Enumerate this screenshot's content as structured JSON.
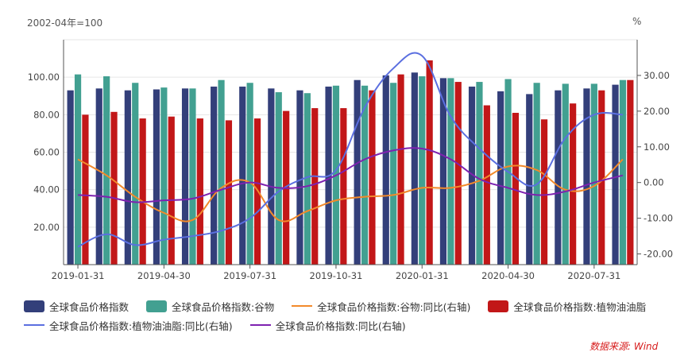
{
  "chart_data": {
    "type": "bar",
    "left_unit": "2002-04年=100",
    "right_unit": "%",
    "x_ticks": [
      "2019-01-31",
      "2019-04-30",
      "2019-07-31",
      "2019-10-31",
      "2020-01-31",
      "2020-04-30",
      "2020-07-31"
    ],
    "categories": [
      "2019-01",
      "2019-02",
      "2019-03",
      "2019-04",
      "2019-05",
      "2019-06",
      "2019-07",
      "2019-08",
      "2019-09",
      "2019-10",
      "2019-11",
      "2019-12",
      "2020-01",
      "2020-02",
      "2020-03",
      "2020-04",
      "2020-05",
      "2020-06",
      "2020-07",
      "2020-08"
    ],
    "yleft": {
      "ticks": [
        "20.00",
        "40.00",
        "60.00",
        "80.00",
        "100.00"
      ],
      "range": [
        0,
        120
      ]
    },
    "yright": {
      "ticks": [
        "-20.00",
        "-10.00",
        "0.00",
        "10.00",
        "20.00",
        "30.00"
      ],
      "range": [
        -23,
        40
      ]
    },
    "series": [
      {
        "name": "全球食品价格指数",
        "kind": "bar",
        "axis": "left",
        "color": "#333f7a",
        "values": [
          93.0,
          94.0,
          93.0,
          93.5,
          94.0,
          95.0,
          95.0,
          94.0,
          93.0,
          95.0,
          98.5,
          101.0,
          102.5,
          99.5,
          95.0,
          92.5,
          91.0,
          93.0,
          94.0,
          96.0
        ]
      },
      {
        "name": "全球食品价格指数:谷物",
        "kind": "bar",
        "axis": "left",
        "color": "#42a091",
        "values": [
          101.5,
          100.5,
          97.0,
          94.5,
          94.0,
          98.5,
          97.0,
          92.0,
          91.5,
          95.5,
          95.5,
          97.0,
          100.5,
          99.5,
          97.5,
          99.0,
          97.0,
          96.5,
          96.5,
          98.5
        ]
      },
      {
        "name": "全球食品价格指数:植物油油脂",
        "kind": "bar",
        "axis": "left",
        "color": "#c21718",
        "values": [
          80.0,
          81.5,
          78.0,
          79.0,
          78.0,
          77.0,
          78.0,
          82.0,
          83.5,
          83.5,
          93.0,
          101.5,
          109.0,
          97.5,
          85.0,
          81.0,
          77.5,
          86.0,
          93.0,
          98.5
        ]
      },
      {
        "name": "全球食品价格指数:谷物:同比(右轴)",
        "kind": "line",
        "axis": "right",
        "color": "#f28a2b",
        "values": [
          6.5,
          2.0,
          -4.0,
          -8.5,
          -10.5,
          -1.5,
          0.0,
          -10.5,
          -8.0,
          -5.0,
          -4.0,
          -3.5,
          -1.5,
          -1.5,
          0.5,
          4.5,
          3.5,
          -2.0,
          -1.0,
          6.5
        ]
      },
      {
        "name": "全球食品价格指数:植物油油脂:同比(右轴)",
        "kind": "line",
        "axis": "right",
        "color": "#5b6fe0",
        "values": [
          -18.0,
          -14.5,
          -17.5,
          -16.0,
          -15.0,
          -13.5,
          -10.0,
          -2.5,
          1.5,
          3.5,
          21.0,
          32.0,
          35.5,
          18.5,
          9.5,
          3.0,
          -0.5,
          12.5,
          19.0,
          19.0
        ]
      },
      {
        "name": "全球食品价格指数:同比(右轴)",
        "kind": "line",
        "axis": "right",
        "color": "#7e22b0",
        "values": [
          -3.5,
          -4.0,
          -5.5,
          -5.0,
          -4.5,
          -2.0,
          0.0,
          -1.5,
          -1.0,
          2.0,
          6.5,
          9.0,
          9.5,
          6.5,
          1.0,
          -1.5,
          -3.5,
          -2.5,
          0.0,
          2.0
        ]
      }
    ]
  },
  "legend": {
    "row1": [
      {
        "label": "全球食品价格指数",
        "type": "box",
        "color": "#333f7a"
      },
      {
        "label": "全球食品价格指数:谷物",
        "type": "box",
        "color": "#42a091"
      },
      {
        "label": "全球食品价格指数:谷物:同比(右轴)",
        "type": "line",
        "color": "#f28a2b"
      },
      {
        "label": "全球食品价格指数:植物油油脂",
        "type": "box",
        "color": "#c21718"
      }
    ],
    "row2": [
      {
        "label": "全球食品价格指数:植物油油脂:同比(右轴)",
        "type": "line",
        "color": "#5b6fe0"
      },
      {
        "label": "全球食品价格指数:同比(右轴)",
        "type": "line",
        "color": "#7e22b0"
      }
    ]
  },
  "source": "数据来源: Wind"
}
